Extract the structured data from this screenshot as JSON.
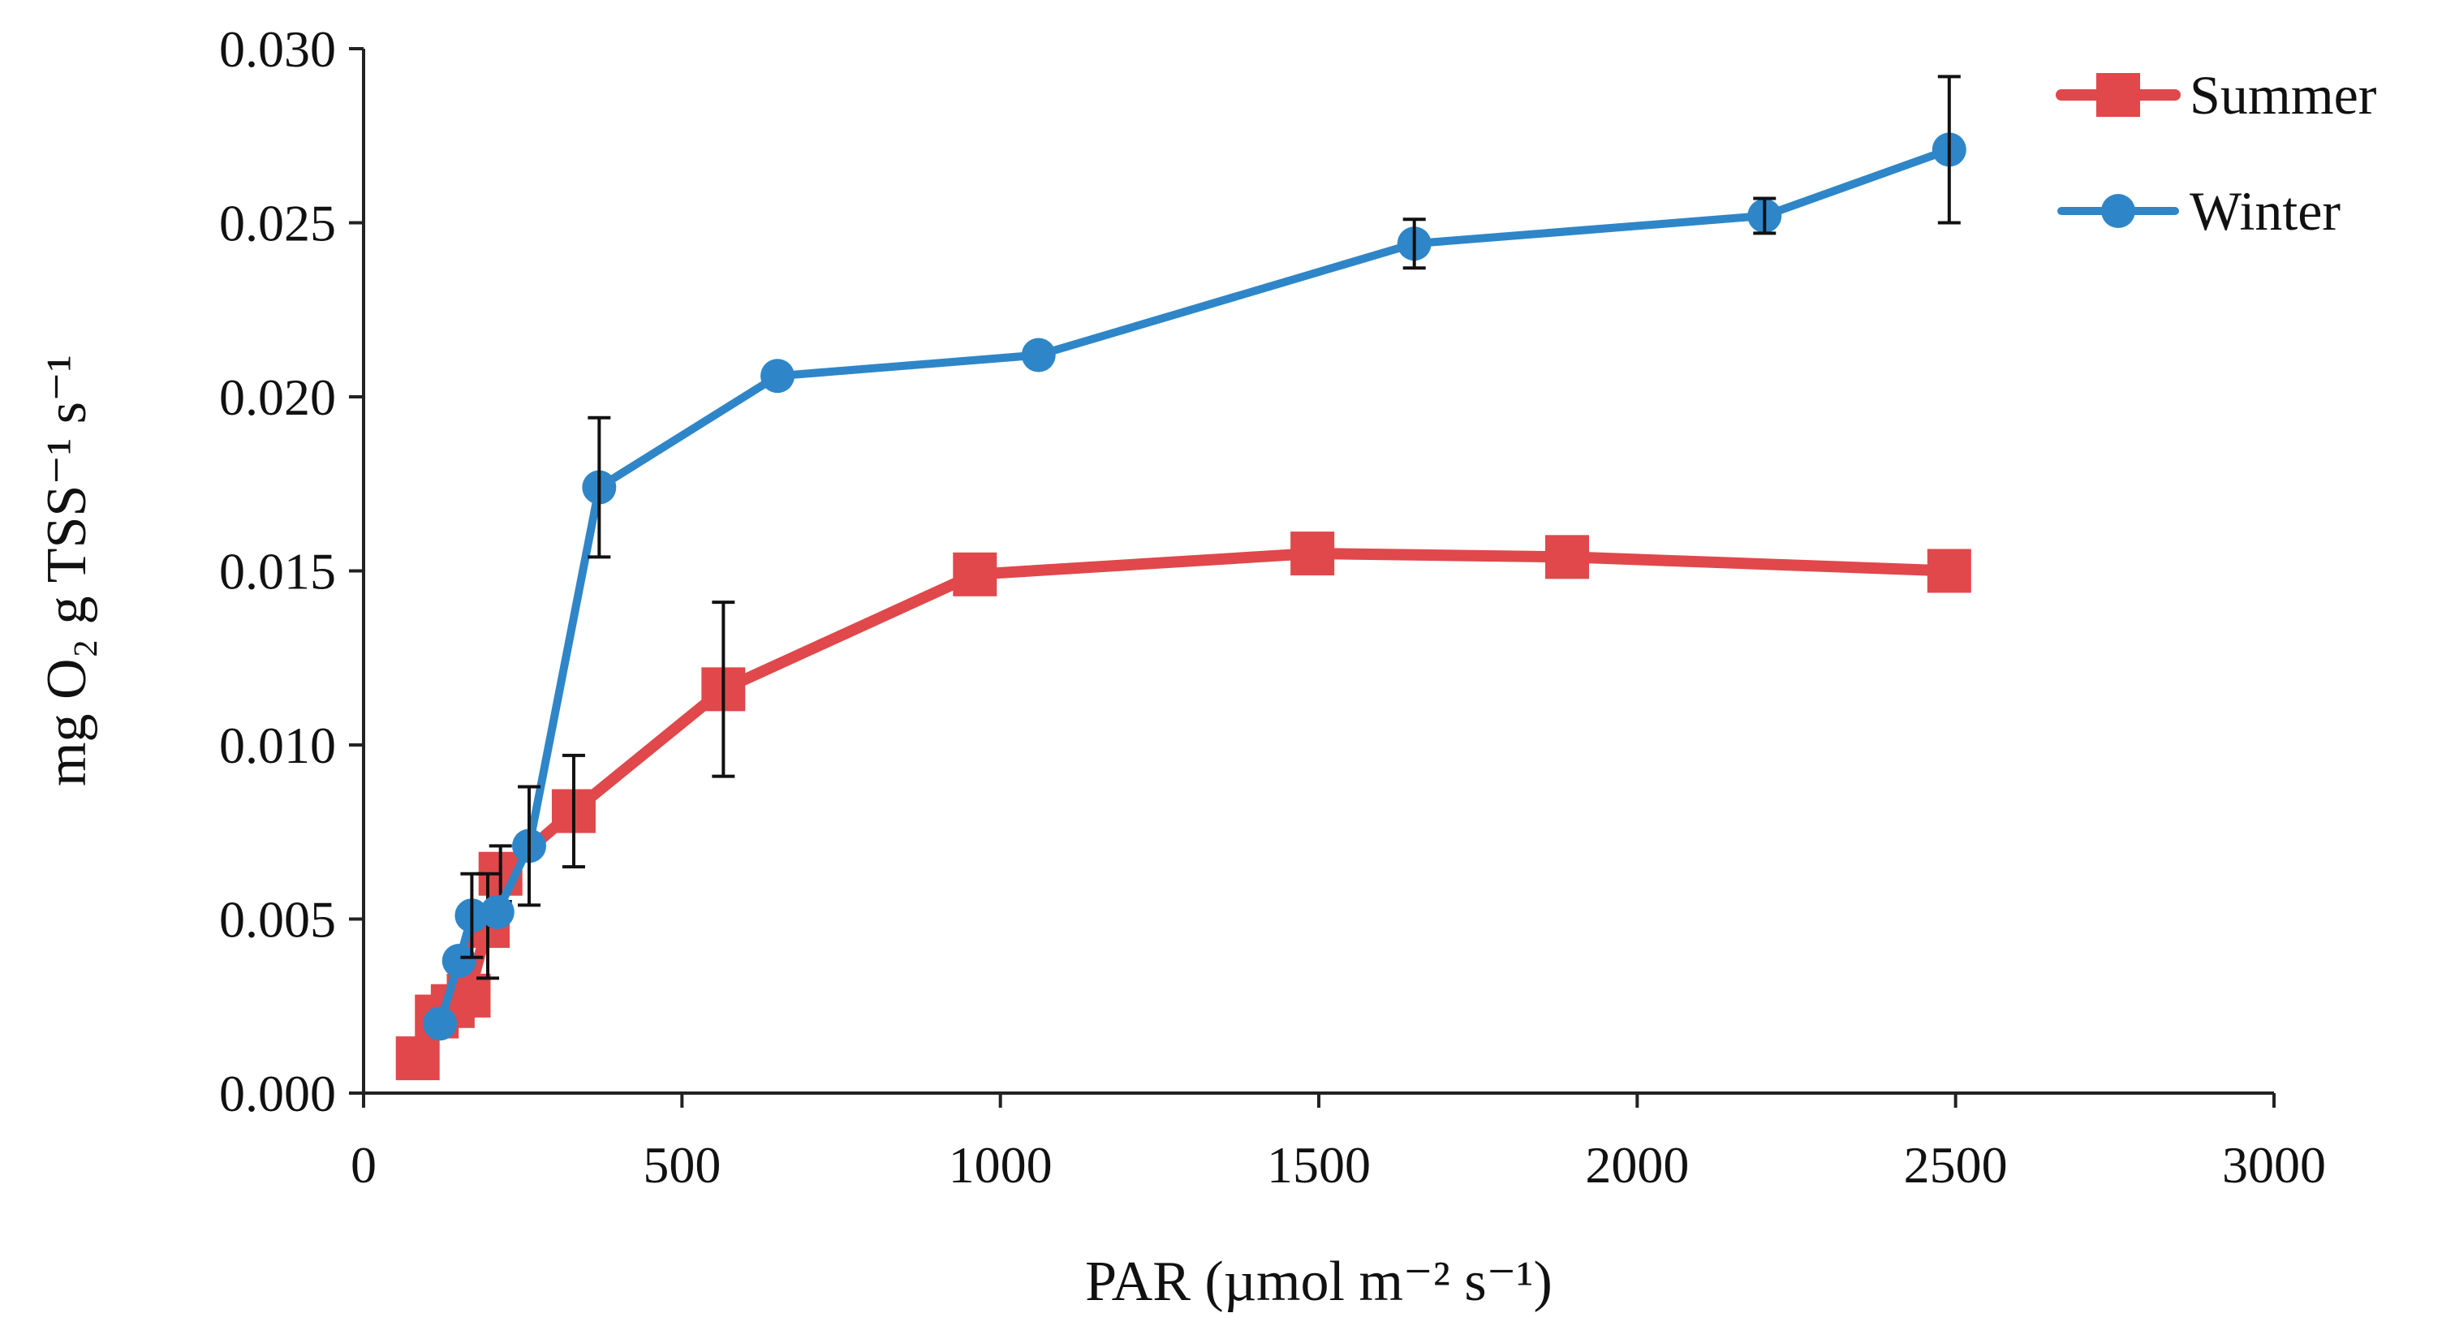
{
  "chart_data": {
    "type": "line",
    "title": "",
    "xlabel": "PAR (µmol m⁻² s⁻¹)",
    "ylabel": "mg O₂ g TSS⁻¹ s⁻¹",
    "xlim": [
      0,
      3000
    ],
    "ylim": [
      0.0,
      0.03
    ],
    "x_ticks": [
      0,
      500,
      1000,
      1500,
      2000,
      2500,
      3000
    ],
    "x_tick_labels": [
      "0",
      "500",
      "1000",
      "1500",
      "2000",
      "2500",
      "3000"
    ],
    "y_ticks": [
      0.0,
      0.005,
      0.01,
      0.015,
      0.02,
      0.025,
      0.03
    ],
    "y_tick_labels": [
      "0.000",
      "0.005",
      "0.010",
      "0.015",
      "0.020",
      "0.025",
      "0.030"
    ],
    "grid": false,
    "legend_position": "top-right",
    "series": [
      {
        "name": "Summer",
        "marker": "square",
        "color": "#E0484B",
        "x": [
          85,
          115,
          140,
          165,
          195,
          215,
          330,
          565,
          960,
          1490,
          1890,
          2490
        ],
        "y": [
          0.001,
          0.0022,
          0.0025,
          0.0028,
          0.0048,
          0.0063,
          0.0081,
          0.0116,
          0.0149,
          0.0155,
          0.0154,
          0.015
        ],
        "error": [
          0,
          0,
          0,
          0,
          0.0015,
          0.0008,
          0.0016,
          0.0025,
          0,
          0,
          0,
          0
        ]
      },
      {
        "name": "Winter",
        "marker": "circle",
        "color": "#2E86C8",
        "x": [
          120,
          150,
          170,
          210,
          260,
          370,
          650,
          1060,
          1650,
          2200,
          2490
        ],
        "y": [
          0.002,
          0.0038,
          0.0051,
          0.0052,
          0.0071,
          0.0174,
          0.0206,
          0.0212,
          0.0244,
          0.0252,
          0.0271
        ],
        "error": [
          0,
          0,
          0.0012,
          0,
          0.0017,
          0.002,
          0,
          0,
          0.0007,
          0.0005,
          0.0021
        ]
      }
    ]
  }
}
